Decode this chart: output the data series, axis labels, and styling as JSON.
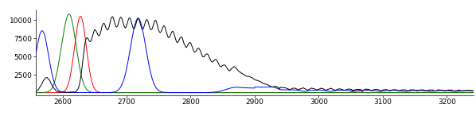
{
  "xlim": [
    2558,
    3242
  ],
  "ylim": [
    -300,
    11500
  ],
  "xticks": [
    2600,
    2700,
    2800,
    2900,
    3000,
    3100,
    3200
  ],
  "yticks": [
    2500,
    5000,
    7500,
    10000
  ],
  "ytick_labels": [
    "2500",
    "5000",
    "7500",
    "10000"
  ],
  "background_color": "#ffffff",
  "line_colors": {
    "black": "#000000",
    "blue": "#0000ff",
    "green": "#008000",
    "red": "#ff0000"
  },
  "linewidth": 0.7,
  "figsize": [
    5.98,
    1.46
  ],
  "dpi": 100
}
